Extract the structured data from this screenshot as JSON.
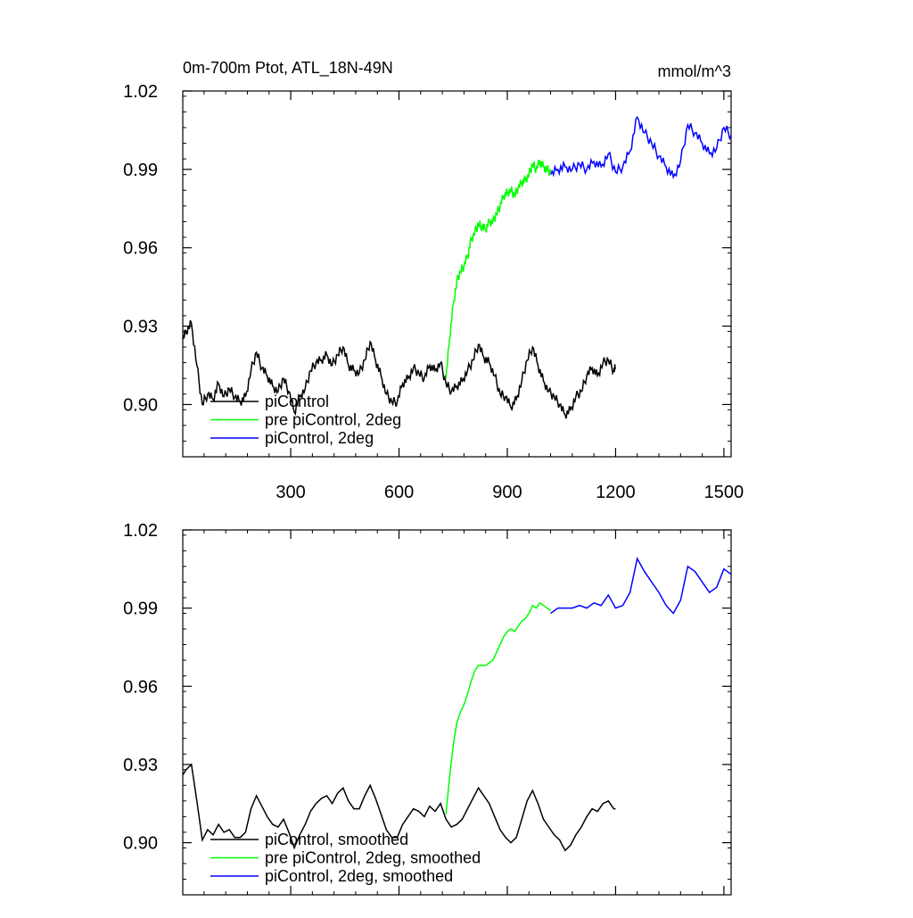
{
  "header": {
    "title": "0m-700m Ptot, ATL_18N-49N",
    "units": "mmol/m^3"
  },
  "chart_data": [
    {
      "type": "line",
      "title": "0m-700m Ptot, ATL_18N-49N",
      "units": "mmol/m^3",
      "xlim": [
        1,
        1520
      ],
      "ylim": [
        0.88,
        1.02
      ],
      "xticks": [
        300,
        600,
        900,
        1200,
        1500
      ],
      "yticks": [
        0.9,
        0.93,
        0.96,
        0.99,
        1.02
      ],
      "ytick_labels": [
        "0.90",
        "0.93",
        "0.96",
        "0.99",
        "1.02"
      ],
      "show_xtick_labels": true,
      "legend_position": "bottom-left",
      "series": [
        {
          "name": "piControl",
          "color": "#000000",
          "x": [
            1,
            10,
            25,
            40,
            55,
            70,
            85,
            100,
            115,
            130,
            145,
            160,
            175,
            190,
            205,
            220,
            235,
            250,
            265,
            280,
            295,
            310,
            325,
            340,
            355,
            370,
            385,
            400,
            415,
            430,
            445,
            460,
            475,
            490,
            505,
            520,
            535,
            550,
            565,
            580,
            595,
            610,
            625,
            640,
            655,
            670,
            685,
            700,
            715,
            730,
            745,
            760,
            775,
            790,
            805,
            820,
            835,
            850,
            865,
            880,
            895,
            910,
            925,
            940,
            955,
            970,
            985,
            1000,
            1015,
            1030,
            1045,
            1060,
            1075,
            1090,
            1105,
            1120,
            1135,
            1150,
            1165,
            1180,
            1195,
            1200
          ],
          "values": [
            0.925,
            0.928,
            0.931,
            0.915,
            0.9,
            0.904,
            0.902,
            0.908,
            0.903,
            0.906,
            0.903,
            0.901,
            0.903,
            0.913,
            0.92,
            0.914,
            0.911,
            0.907,
            0.905,
            0.91,
            0.905,
            0.897,
            0.903,
            0.906,
            0.913,
            0.916,
            0.917,
            0.919,
            0.915,
            0.919,
            0.922,
            0.915,
            0.913,
            0.912,
            0.917,
            0.924,
            0.917,
            0.911,
            0.904,
            0.901,
            0.901,
            0.908,
            0.91,
            0.914,
            0.912,
            0.91,
            0.915,
            0.913,
            0.916,
            0.908,
            0.905,
            0.907,
            0.909,
            0.913,
            0.917,
            0.923,
            0.918,
            0.916,
            0.911,
            0.904,
            0.903,
            0.899,
            0.902,
            0.909,
            0.917,
            0.922,
            0.915,
            0.909,
            0.905,
            0.903,
            0.9,
            0.896,
            0.898,
            0.903,
            0.905,
            0.911,
            0.914,
            0.911,
            0.916,
            0.917,
            0.913,
            0.914
          ]
        },
        {
          "name": "pre piControl, 2deg",
          "color": "#00ff00",
          "x": [
            730,
            740,
            750,
            760,
            770,
            780,
            790,
            800,
            810,
            820,
            830,
            840,
            850,
            860,
            870,
            880,
            890,
            900,
            910,
            920,
            930,
            940,
            950,
            960,
            970,
            980,
            990,
            1000,
            1010,
            1020
          ],
          "values": [
            0.91,
            0.925,
            0.938,
            0.947,
            0.951,
            0.953,
            0.957,
            0.963,
            0.966,
            0.969,
            0.968,
            0.967,
            0.97,
            0.97,
            0.973,
            0.976,
            0.98,
            0.981,
            0.982,
            0.98,
            0.983,
            0.985,
            0.986,
            0.988,
            0.992,
            0.99,
            0.993,
            0.991,
            0.99,
            0.989
          ]
        },
        {
          "name": "piControl, 2deg",
          "color": "#0000ff",
          "x": [
            1020,
            1040,
            1060,
            1080,
            1100,
            1120,
            1140,
            1160,
            1180,
            1200,
            1220,
            1240,
            1260,
            1280,
            1300,
            1320,
            1340,
            1360,
            1380,
            1400,
            1420,
            1440,
            1460,
            1480,
            1500,
            1520
          ],
          "values": [
            0.988,
            0.99,
            0.991,
            0.99,
            0.992,
            0.99,
            0.993,
            0.991,
            0.996,
            0.989,
            0.991,
            0.997,
            1.01,
            1.004,
            1.0,
            0.995,
            0.991,
            0.987,
            0.993,
            1.007,
            1.004,
            1.0,
            0.996,
            0.998,
            1.006,
            1.003
          ]
        }
      ]
    },
    {
      "type": "line",
      "xlim": [
        1,
        1520
      ],
      "ylim": [
        0.88,
        1.02
      ],
      "xticks": [
        300,
        600,
        900,
        1200,
        1500
      ],
      "yticks": [
        0.9,
        0.93,
        0.96,
        0.99,
        1.02
      ],
      "ytick_labels": [
        "0.90",
        "0.93",
        "0.96",
        "0.99",
        "1.02"
      ],
      "show_xtick_labels": false,
      "legend_position": "bottom-left",
      "series": [
        {
          "name": "piControl, smoothed",
          "color": "#000000",
          "x": [
            1,
            10,
            25,
            40,
            55,
            70,
            85,
            100,
            115,
            130,
            145,
            160,
            175,
            190,
            205,
            220,
            235,
            250,
            265,
            280,
            295,
            310,
            325,
            340,
            355,
            370,
            385,
            400,
            415,
            430,
            445,
            460,
            475,
            490,
            505,
            520,
            535,
            550,
            565,
            580,
            595,
            610,
            625,
            640,
            655,
            670,
            685,
            700,
            715,
            730,
            745,
            760,
            775,
            790,
            805,
            820,
            835,
            850,
            865,
            880,
            895,
            910,
            925,
            940,
            955,
            970,
            985,
            1000,
            1015,
            1030,
            1045,
            1060,
            1075,
            1090,
            1105,
            1120,
            1135,
            1150,
            1165,
            1180,
            1195,
            1200
          ],
          "values": [
            0.926,
            0.928,
            0.93,
            0.916,
            0.901,
            0.905,
            0.903,
            0.907,
            0.904,
            0.905,
            0.902,
            0.902,
            0.904,
            0.913,
            0.918,
            0.914,
            0.91,
            0.907,
            0.906,
            0.909,
            0.904,
            0.898,
            0.903,
            0.907,
            0.912,
            0.915,
            0.917,
            0.918,
            0.915,
            0.919,
            0.921,
            0.916,
            0.913,
            0.913,
            0.918,
            0.922,
            0.917,
            0.911,
            0.905,
            0.902,
            0.902,
            0.907,
            0.91,
            0.913,
            0.912,
            0.91,
            0.914,
            0.912,
            0.915,
            0.909,
            0.906,
            0.907,
            0.909,
            0.913,
            0.917,
            0.921,
            0.918,
            0.915,
            0.91,
            0.905,
            0.902,
            0.9,
            0.902,
            0.909,
            0.916,
            0.92,
            0.915,
            0.909,
            0.906,
            0.903,
            0.901,
            0.897,
            0.899,
            0.903,
            0.906,
            0.91,
            0.913,
            0.912,
            0.915,
            0.916,
            0.913,
            0.913
          ]
        },
        {
          "name": "pre piControl, 2deg, smoothed",
          "color": "#00ff00",
          "x": [
            730,
            740,
            750,
            760,
            770,
            780,
            790,
            800,
            810,
            820,
            830,
            840,
            850,
            860,
            870,
            880,
            890,
            900,
            910,
            920,
            930,
            940,
            950,
            960,
            970,
            980,
            990,
            1000,
            1010,
            1020
          ],
          "values": [
            0.911,
            0.925,
            0.937,
            0.946,
            0.95,
            0.953,
            0.957,
            0.962,
            0.966,
            0.968,
            0.968,
            0.968,
            0.969,
            0.97,
            0.973,
            0.976,
            0.979,
            0.981,
            0.982,
            0.981,
            0.983,
            0.985,
            0.986,
            0.988,
            0.991,
            0.99,
            0.992,
            0.991,
            0.99,
            0.989
          ]
        },
        {
          "name": "piControl, 2deg, smoothed",
          "color": "#0000ff",
          "x": [
            1020,
            1040,
            1060,
            1080,
            1100,
            1120,
            1140,
            1160,
            1180,
            1200,
            1220,
            1240,
            1260,
            1280,
            1300,
            1320,
            1340,
            1360,
            1380,
            1400,
            1420,
            1440,
            1460,
            1480,
            1500,
            1520
          ],
          "values": [
            0.988,
            0.99,
            0.99,
            0.99,
            0.991,
            0.99,
            0.992,
            0.991,
            0.995,
            0.99,
            0.991,
            0.996,
            1.009,
            1.004,
            1.0,
            0.996,
            0.991,
            0.988,
            0.993,
            1.006,
            1.004,
            1.0,
            0.996,
            0.998,
            1.005,
            1.003
          ]
        }
      ]
    }
  ]
}
